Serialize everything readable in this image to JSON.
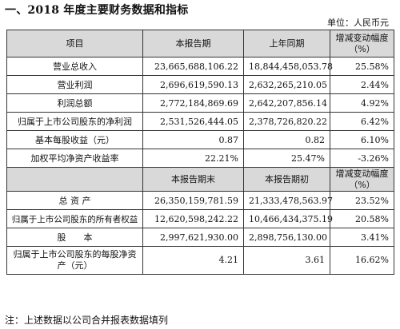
{
  "title": "一、2018 年度主要财务数据和指标",
  "unit": "单位：人民币元",
  "header1": [
    "项目",
    "本报告期",
    "上年同期",
    "增减变动幅度（%）"
  ],
  "rows1": [
    {
      "item": "营业总收入",
      "current": "23,665,688,106.22",
      "prior": "18,844,458,053.78",
      "change": "25.58%"
    },
    {
      "item": "营业利润",
      "current": "2,696,619,590.13",
      "prior": "2,632,265,210.05",
      "change": "2.44%"
    },
    {
      "item": "利润总额",
      "current": "2,772,184,869.69",
      "prior": "2,642,207,856.14",
      "change": "4.92%"
    },
    {
      "item": "归属于上市公司股东的净利润",
      "current": "2,531,526,444.05",
      "prior": "2,378,726,820.22",
      "change": "6.42%"
    },
    {
      "item": "基本每股收益（元）",
      "current": "0.87",
      "prior": "0.82",
      "change": "6.10%"
    },
    {
      "item": "加权平均净资产收益率",
      "current": "22.21%",
      "prior": "25.47%",
      "change": "-3.26%"
    }
  ],
  "header2": [
    "",
    "本报告期末",
    "本报告期初",
    "增减变动幅度（%）"
  ],
  "rows2": [
    {
      "item": "总 资 产",
      "current": "26,350,159,781.59",
      "prior": "21,333,478,563.97",
      "change": "23.52%"
    },
    {
      "item": "归属于上市公司股东的所有者权益",
      "current": "12,620,598,242.22",
      "prior": "10,466,434,375.19",
      "change": "20.58%"
    },
    {
      "item": "股　　本",
      "current": "2,997,621,930.00",
      "prior": "2,898,756,130.00",
      "change": "3.41%"
    },
    {
      "item": "归属于上市公司股东的每股净资产（元）",
      "current": "4.21",
      "prior": "3.61",
      "change": "16.62%"
    }
  ],
  "note": "注：上述数据以公司合并报表数据填列"
}
